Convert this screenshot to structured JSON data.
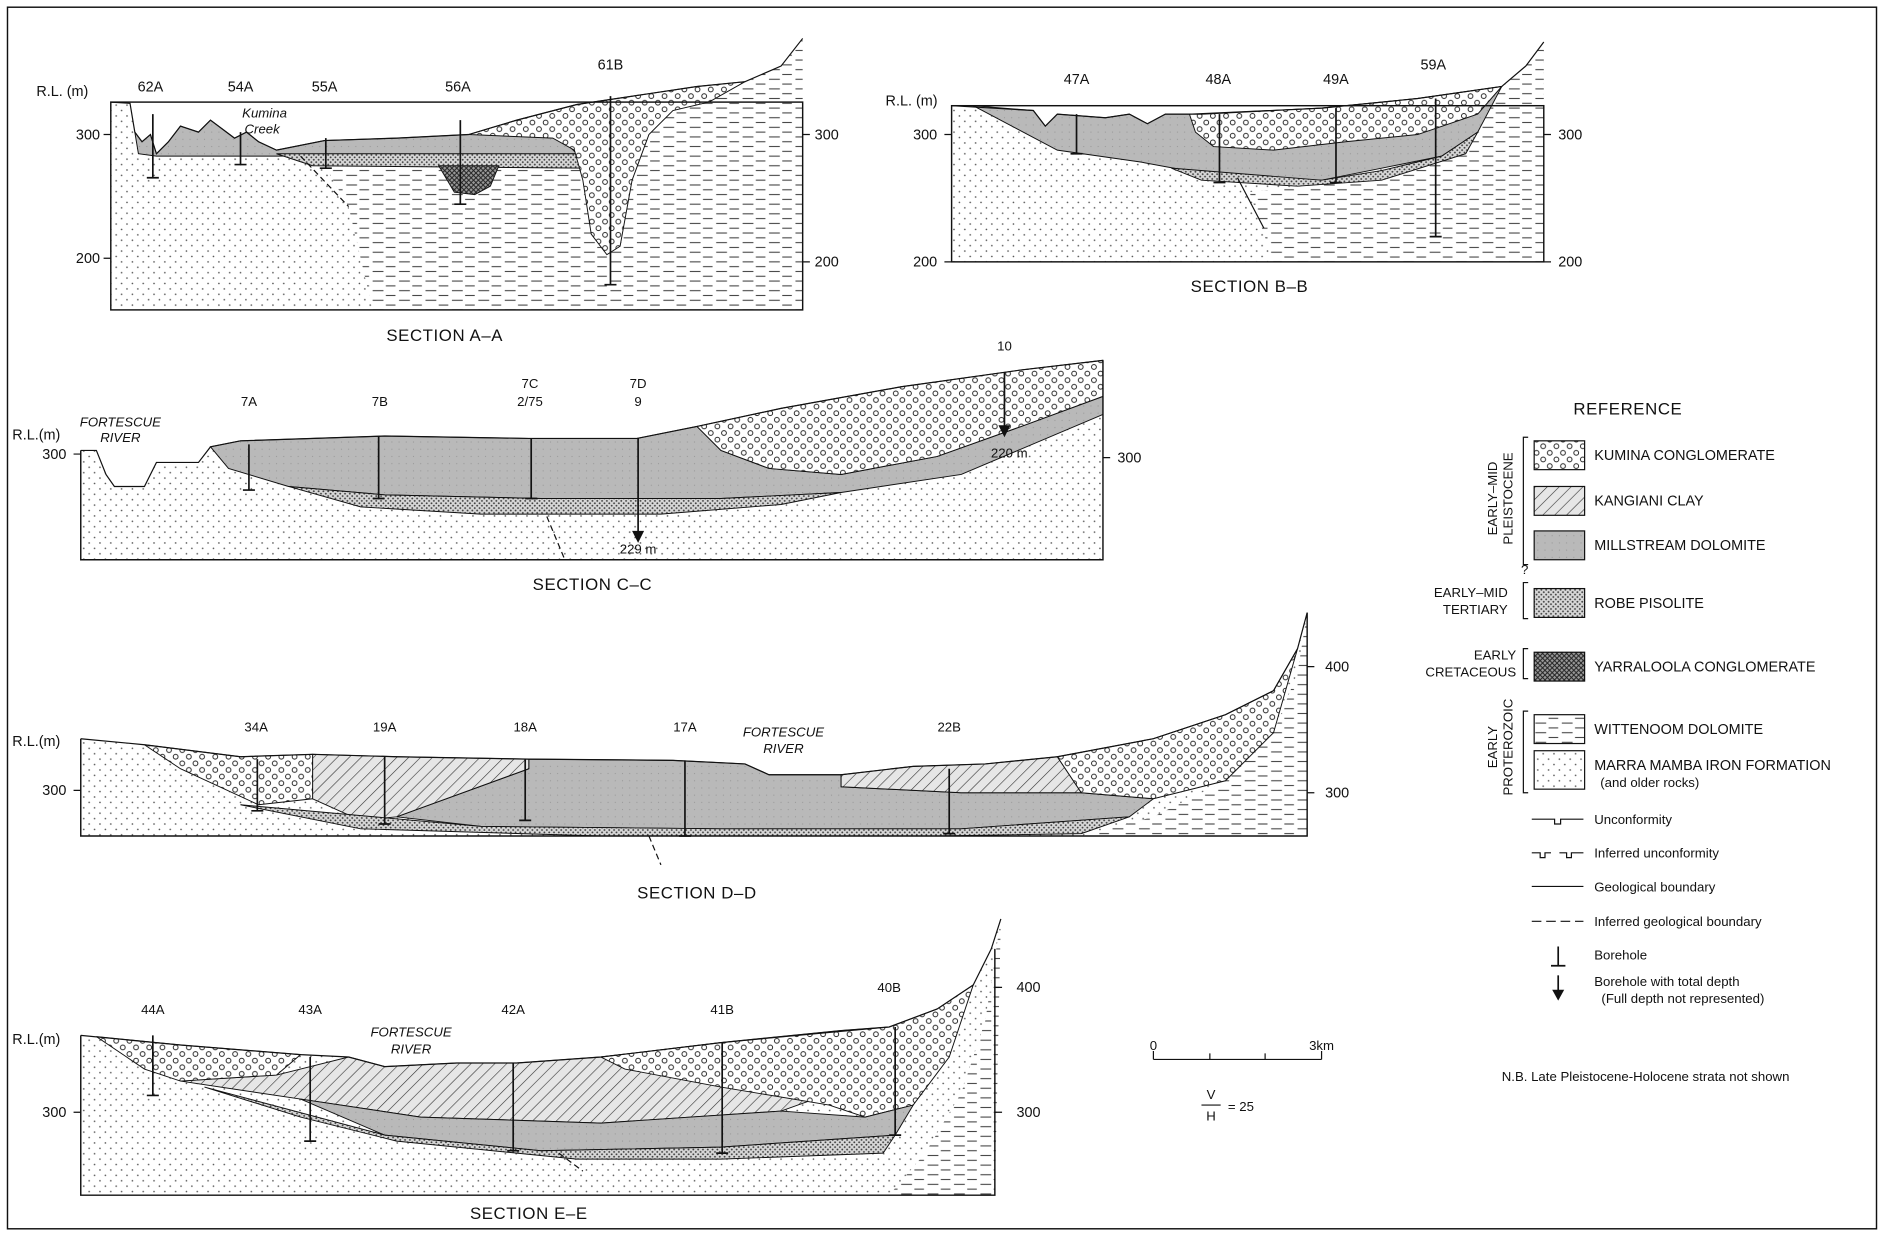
{
  "sections": [
    {
      "title": "SECTION A–A",
      "rl_label": "R.L. (m)",
      "left_ticks": [
        300,
        200
      ],
      "right_ticks": [
        300,
        200
      ],
      "boreholes": [
        "62A",
        "54A",
        "55A",
        "56A",
        "61B"
      ],
      "place": [
        "Kumina",
        "Creek"
      ]
    },
    {
      "title": "SECTION B–B",
      "rl_label": "R.L. (m)",
      "left_ticks": [
        300,
        200
      ],
      "right_ticks": [
        300,
        200
      ],
      "boreholes": [
        "47A",
        "48A",
        "49A",
        "59A"
      ]
    },
    {
      "title": "SECTION C–C",
      "rl_label": "R.L.(m)",
      "left_ticks": [
        300
      ],
      "right_ticks": [
        300
      ],
      "boreholes": [
        {
          "label": "7A"
        },
        {
          "label": "7B"
        },
        {
          "label": "7C",
          "sub": "2/75"
        },
        {
          "label": "7D",
          "sub": "9",
          "depth": "229 m"
        },
        {
          "label": "10",
          "depth": "220 m"
        }
      ],
      "river": [
        "FORTESCUE",
        "RIVER"
      ]
    },
    {
      "title": "SECTION D–D",
      "rl_label": "R.L.(m)",
      "left_ticks": [
        300
      ],
      "right_ticks": [
        400,
        300
      ],
      "boreholes": [
        "34A",
        "19A",
        "18A",
        "17A",
        "22B"
      ],
      "river": [
        "FORTESCUE",
        "RIVER"
      ]
    },
    {
      "title": "SECTION E–E",
      "rl_label": "R.L.(m)",
      "left_ticks": [
        300
      ],
      "right_ticks": [
        400,
        300
      ],
      "boreholes": [
        "44A",
        "43A",
        "42A",
        "41B",
        "40B"
      ],
      "river": [
        "FORTESCUE",
        "RIVER"
      ]
    }
  ],
  "legend": {
    "title": "REFERENCE",
    "ages": [
      {
        "lines": [
          "EARLY–MID",
          "PLEISTOCENE"
        ],
        "units": [
          "KUMINA CONGLOMERATE",
          "KANGIANI CLAY",
          "MILLSTREAM DOLOMITE"
        ]
      },
      {
        "lines": [
          "EARLY–MID",
          "TERTIARY"
        ],
        "units": [
          "ROBE PISOLITE"
        ]
      },
      {
        "lines": [
          "EARLY",
          "CRETACEOUS"
        ],
        "units": [
          "YARRALOOLA CONGLOMERATE"
        ]
      },
      {
        "lines": [
          "EARLY",
          "PROTEROZOIC"
        ],
        "units": [
          "WITTENOOM DOLOMITE",
          "MARRA MAMBA IRON FORMATION"
        ],
        "unit_note": "(and older rocks)"
      }
    ],
    "uncertain": "?",
    "symbols": [
      "Unconformity",
      "Inferred unconformity",
      "Geological boundary",
      "Inferred geological boundary",
      "Borehole"
    ],
    "depth_symbol": [
      "Borehole with total depth",
      "(Full depth not represented)"
    ],
    "note": "N.B.   Late Pleistocene-Holocene strata not shown"
  },
  "scale": {
    "start": "0",
    "end": "3km",
    "ratio_top": "V",
    "ratio_bottom": "H",
    "ratio_value": "= 25"
  }
}
